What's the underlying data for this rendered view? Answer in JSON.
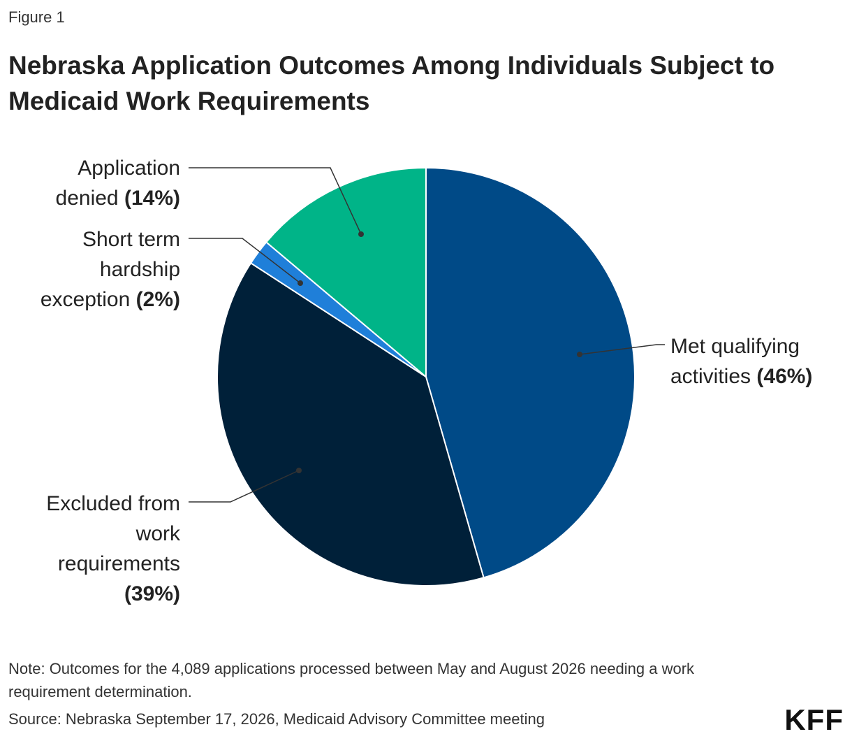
{
  "figure_label": "Figure 1",
  "chart_data": {
    "type": "pie",
    "title": "Nebraska Application Outcomes Among Individuals Subject to Medicaid Work Requirements",
    "categories": [
      "Met qualifying activities",
      "Excluded from work requirements",
      "Short term hardship exception",
      "Application denied"
    ],
    "values": [
      46,
      39,
      2,
      14
    ],
    "value_labels": [
      "(46%)",
      "(39%)",
      "(2%)",
      "(14%)"
    ],
    "colors": [
      "#004a87",
      "#002039",
      "#1f7fd9",
      "#00b488"
    ]
  },
  "note": "Note: Outcomes for the 4,089 applications processed between May and August 2026 needing a work requirement determination.",
  "source": "Source: Nebraska September 17, 2026, Medicaid Advisory Committee meeting",
  "logo": "KFF"
}
